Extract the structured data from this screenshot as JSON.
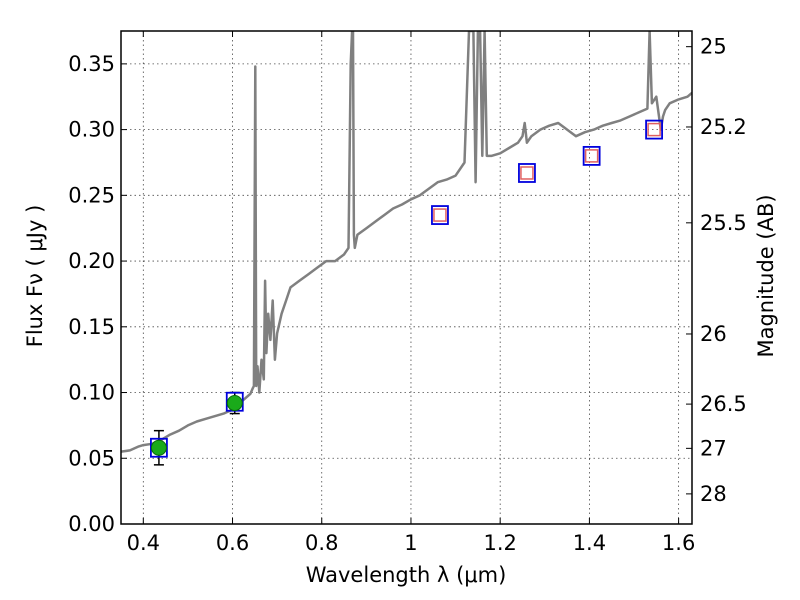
{
  "chart_data": {
    "type": "scatter",
    "xlabel": "Wavelength  λ (μm)",
    "ylabel": "Flux  Fν  ( μJy )",
    "y2label": "Magnitude (AB)",
    "xlim": [
      0.35,
      1.63
    ],
    "ylim": [
      0.0,
      0.375
    ],
    "grid": true,
    "x_ticks": [
      {
        "value": 0.4,
        "label": "0.4"
      },
      {
        "value": 0.6,
        "label": "0.6"
      },
      {
        "value": 0.8,
        "label": "0.8"
      },
      {
        "value": 1.0,
        "label": "1"
      },
      {
        "value": 1.2,
        "label": "1.2"
      },
      {
        "value": 1.4,
        "label": "1.4"
      },
      {
        "value": 1.6,
        "label": "1.6"
      }
    ],
    "y_ticks": [
      {
        "value": 0.0,
        "label": "0.00"
      },
      {
        "value": 0.05,
        "label": "0.05"
      },
      {
        "value": 0.1,
        "label": "0.10"
      },
      {
        "value": 0.15,
        "label": "0.15"
      },
      {
        "value": 0.2,
        "label": "0.20"
      },
      {
        "value": 0.25,
        "label": "0.25"
      },
      {
        "value": 0.3,
        "label": "0.30"
      },
      {
        "value": 0.35,
        "label": "0.35"
      }
    ],
    "mag_ticks": [
      {
        "mag": 25,
        "label": "25"
      },
      {
        "mag": 25.2,
        "label": "25.2"
      },
      {
        "mag": 25.5,
        "label": "25.5"
      },
      {
        "mag": 26,
        "label": "26"
      },
      {
        "mag": 26.5,
        "label": "26.5"
      },
      {
        "mag": 27,
        "label": "27"
      },
      {
        "mag": 28,
        "label": "28"
      }
    ],
    "series": [
      {
        "kind": "sed_template_line",
        "color": "#808080",
        "x": [
          0.35,
          0.37,
          0.39,
          0.4,
          0.42,
          0.44,
          0.46,
          0.48,
          0.5,
          0.52,
          0.54,
          0.56,
          0.58,
          0.6,
          0.62,
          0.64,
          0.645,
          0.648,
          0.651,
          0.653,
          0.656,
          0.66,
          0.665,
          0.67,
          0.673,
          0.676,
          0.68,
          0.685,
          0.69,
          0.695,
          0.7,
          0.71,
          0.72,
          0.73,
          0.75,
          0.77,
          0.79,
          0.81,
          0.83,
          0.85,
          0.86,
          0.865,
          0.868,
          0.87,
          0.872,
          0.874,
          0.877,
          0.88,
          0.9,
          0.92,
          0.94,
          0.96,
          0.98,
          1.0,
          1.02,
          1.04,
          1.06,
          1.08,
          1.1,
          1.12,
          1.13,
          1.14,
          1.145,
          1.15,
          1.155,
          1.16,
          1.165,
          1.17,
          1.18,
          1.2,
          1.22,
          1.24,
          1.25,
          1.255,
          1.26,
          1.27,
          1.29,
          1.31,
          1.33,
          1.35,
          1.37,
          1.39,
          1.41,
          1.43,
          1.45,
          1.47,
          1.49,
          1.51,
          1.53,
          1.535,
          1.54,
          1.55,
          1.56,
          1.565,
          1.57,
          1.58,
          1.6,
          1.62,
          1.63
        ],
        "y": [
          0.055,
          0.056,
          0.059,
          0.06,
          0.061,
          0.064,
          0.068,
          0.071,
          0.075,
          0.078,
          0.08,
          0.082,
          0.084,
          0.087,
          0.093,
          0.099,
          0.103,
          0.105,
          0.348,
          0.105,
          0.12,
          0.1,
          0.125,
          0.11,
          0.185,
          0.13,
          0.16,
          0.14,
          0.17,
          0.125,
          0.145,
          0.16,
          0.17,
          0.18,
          0.185,
          0.19,
          0.195,
          0.2,
          0.2,
          0.205,
          0.21,
          0.35,
          0.375,
          0.375,
          0.22,
          0.21,
          0.215,
          0.22,
          0.225,
          0.23,
          0.235,
          0.24,
          0.243,
          0.247,
          0.25,
          0.255,
          0.26,
          0.262,
          0.265,
          0.275,
          0.375,
          0.375,
          0.26,
          0.375,
          0.375,
          0.28,
          0.375,
          0.28,
          0.28,
          0.282,
          0.286,
          0.29,
          0.295,
          0.305,
          0.29,
          0.295,
          0.3,
          0.303,
          0.305,
          0.3,
          0.295,
          0.298,
          0.3,
          0.303,
          0.305,
          0.307,
          0.31,
          0.313,
          0.316,
          0.375,
          0.32,
          0.325,
          0.3,
          0.31,
          0.315,
          0.32,
          0.323,
          0.325,
          0.328
        ]
      },
      {
        "kind": "observed_points",
        "color": "#1aaa1a",
        "x": [
          0.435,
          0.605
        ],
        "y": [
          0.058,
          0.092
        ],
        "yerr": [
          0.013,
          0.008
        ]
      },
      {
        "kind": "model_boxes",
        "color": "#0000dd",
        "x": [
          0.435,
          0.605,
          1.065,
          1.26,
          1.405,
          1.545
        ],
        "y": [
          0.058,
          0.093,
          0.235,
          0.267,
          0.28,
          0.3
        ]
      },
      {
        "kind": "upper_limit_boxes",
        "color": "#e06060",
        "x": [
          1.065,
          1.26,
          1.405,
          1.545
        ],
        "y": [
          0.235,
          0.267,
          0.28,
          0.3
        ]
      }
    ]
  }
}
